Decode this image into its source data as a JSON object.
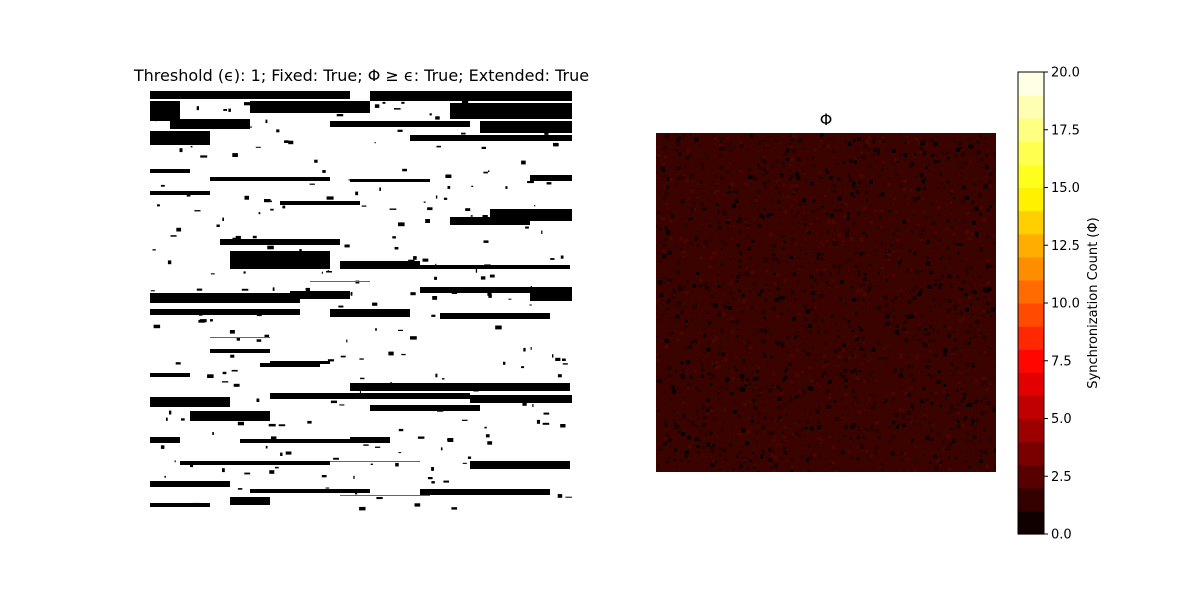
{
  "left_title": "Threshold (ϵ): 1; Fixed: True; Φ  ≥  ϵ: True; Extended: True",
  "right_title": "Φ",
  "chart_data": [
    {
      "type": "heatmap",
      "title": "Threshold (ϵ): 1; Fixed: True; Φ  ≥  ϵ: True; Extended: True",
      "colormap": "binary",
      "colors": {
        "true": "#ffffff",
        "false": "#000000"
      },
      "axes": "off"
    },
    {
      "type": "heatmap",
      "title": "Φ",
      "colormap": "hot",
      "colors": {
        "low": "#000000",
        "dominant": "#3a0300",
        "high": "#ffffff"
      },
      "axes": "off",
      "colorbar": {
        "label": "Synchronization Count (Φ)",
        "range": [
          0,
          20
        ],
        "levels": 20,
        "ticks": [
          "0.0",
          "2.5",
          "5.0",
          "7.5",
          "10.0",
          "12.5",
          "15.0",
          "17.5",
          "20.0"
        ]
      }
    }
  ]
}
